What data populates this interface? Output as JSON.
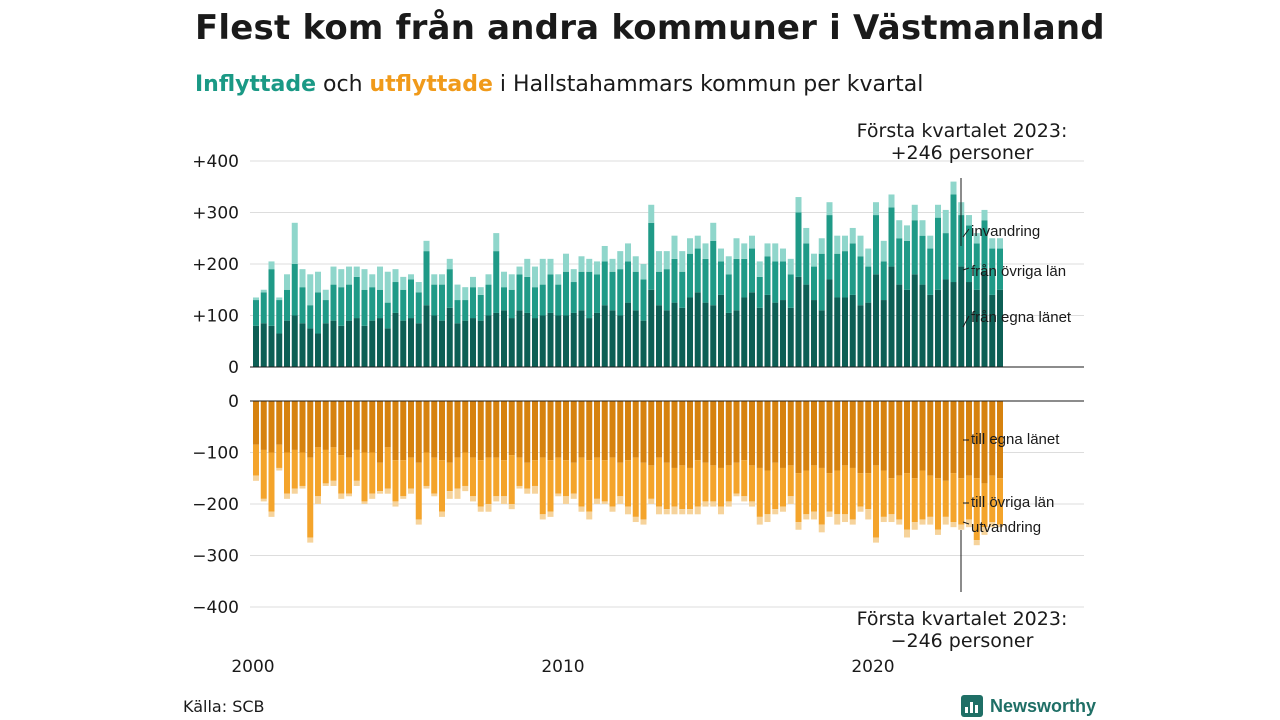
{
  "title": "Flest kom från andra kommuner i Västmanland",
  "subtitle": {
    "in_word": "Inflyttade",
    "middle": " och ",
    "out_word": "utflyttade",
    "rest": " i Hallstahammars kommun per kvartal"
  },
  "source": "Källa: SCB",
  "logo_text": "Newsworthy",
  "colors": {
    "in_own_county": "#0d5f55",
    "in_other_counties": "#1f9a87",
    "in_immigration": "#8fd6cb",
    "out_own_county": "#d6820f",
    "out_other_counties": "#f4a42b",
    "out_emigration": "#f6d39b",
    "grid": "#dddddd"
  },
  "chart_data": {
    "type": "bar",
    "stacked": true,
    "x_unit": "quarter",
    "first_quarter": "2000 K1",
    "last_quarter": "2023 K1",
    "xticks": [
      "2000",
      "2010",
      "2020"
    ],
    "yticks_top": [
      "+400",
      "+300",
      "+200",
      "+100",
      "0"
    ],
    "yticks_bottom": [
      "0",
      "−100",
      "−200",
      "−300",
      "−400"
    ],
    "ylim_top": [
      0,
      400
    ],
    "ylim_bottom": [
      -400,
      0
    ],
    "grid": true,
    "inflow_series": [
      {
        "name": "från egna länet",
        "values": [
          80,
          85,
          80,
          65,
          90,
          100,
          85,
          75,
          65,
          85,
          90,
          80,
          90,
          95,
          80,
          90,
          95,
          75,
          105,
          90,
          95,
          85,
          120,
          100,
          90,
          115,
          85,
          90,
          95,
          90,
          100,
          105,
          110,
          95,
          110,
          105,
          95,
          100,
          105,
          100,
          100,
          105,
          110,
          95,
          105,
          120,
          110,
          100,
          125,
          110,
          90,
          150,
          120,
          110,
          125,
          115,
          135,
          145,
          125,
          120,
          140,
          105,
          110,
          135,
          145,
          115,
          140,
          125,
          130,
          115,
          175,
          160,
          130,
          110,
          170,
          135,
          135,
          140,
          120,
          125,
          180,
          130,
          195,
          160,
          150,
          180,
          160,
          140,
          150,
          170,
          165,
          195,
          165,
          150,
          185,
          140,
          150
        ]
      },
      {
        "name": "från övriga län",
        "values": [
          50,
          60,
          110,
          65,
          60,
          100,
          70,
          45,
          80,
          45,
          70,
          75,
          70,
          80,
          70,
          65,
          55,
          50,
          60,
          60,
          75,
          60,
          105,
          60,
          70,
          75,
          45,
          40,
          60,
          50,
          60,
          120,
          45,
          55,
          70,
          70,
          60,
          60,
          75,
          60,
          85,
          60,
          75,
          90,
          75,
          85,
          75,
          90,
          80,
          75,
          80,
          130,
          65,
          80,
          85,
          70,
          85,
          85,
          85,
          125,
          65,
          75,
          100,
          75,
          85,
          60,
          75,
          80,
          75,
          65,
          125,
          80,
          65,
          110,
          125,
          85,
          90,
          100,
          95,
          70,
          115,
          75,
          115,
          90,
          95,
          105,
          95,
          90,
          140,
          90,
          170,
          100,
          110,
          90,
          100,
          90,
          80
        ]
      },
      {
        "name": "invandring",
        "values": [
          5,
          5,
          15,
          5,
          30,
          80,
          35,
          60,
          40,
          20,
          35,
          35,
          35,
          20,
          40,
          25,
          45,
          60,
          25,
          25,
          10,
          20,
          20,
          20,
          20,
          20,
          30,
          25,
          20,
          15,
          20,
          35,
          30,
          30,
          15,
          35,
          40,
          50,
          30,
          20,
          35,
          25,
          30,
          25,
          25,
          30,
          25,
          35,
          35,
          30,
          30,
          35,
          40,
          35,
          45,
          40,
          30,
          25,
          30,
          35,
          25,
          35,
          40,
          30,
          25,
          30,
          25,
          35,
          25,
          30,
          30,
          30,
          25,
          30,
          25,
          35,
          30,
          30,
          40,
          35,
          25,
          40,
          25,
          35,
          30,
          30,
          30,
          25,
          25,
          45,
          25,
          25,
          20,
          20,
          20,
          20,
          20
        ]
      }
    ],
    "outflow_series": [
      {
        "name": "till egna länet",
        "values": [
          -85,
          -95,
          -100,
          -85,
          -100,
          -95,
          -100,
          -110,
          -90,
          -95,
          -90,
          -105,
          -110,
          -95,
          -100,
          -100,
          -120,
          -90,
          -115,
          -115,
          -110,
          -120,
          -100,
          -110,
          -115,
          -120,
          -110,
          -100,
          -110,
          -115,
          -110,
          -110,
          -115,
          -105,
          -110,
          -120,
          -115,
          -110,
          -115,
          -110,
          -115,
          -120,
          -110,
          -115,
          -110,
          -115,
          -110,
          -120,
          -115,
          -110,
          -120,
          -125,
          -110,
          -120,
          -130,
          -125,
          -130,
          -115,
          -120,
          -125,
          -130,
          -125,
          -120,
          -115,
          -125,
          -130,
          -135,
          -120,
          -130,
          -125,
          -140,
          -135,
          -125,
          -130,
          -140,
          -135,
          -125,
          -130,
          -140,
          -140,
          -125,
          -135,
          -150,
          -145,
          -140,
          -150,
          -135,
          -145,
          -150,
          -155,
          -140,
          -150,
          -145,
          -150,
          -160,
          -145,
          -150
        ]
      },
      {
        "name": "till övriga län",
        "values": [
          -60,
          -95,
          -115,
          -45,
          -80,
          -75,
          -65,
          -155,
          -95,
          -65,
          -65,
          -75,
          -70,
          -60,
          -95,
          -80,
          -55,
          -80,
          -80,
          -70,
          -60,
          -110,
          -65,
          -70,
          -100,
          -55,
          -60,
          -65,
          -75,
          -90,
          -90,
          -75,
          -70,
          -95,
          -55,
          -50,
          -50,
          -110,
          -100,
          -70,
          -70,
          -60,
          -95,
          -100,
          -80,
          -80,
          -95,
          -65,
          -90,
          -115,
          -110,
          -65,
          -95,
          -90,
          -75,
          -85,
          -80,
          -90,
          -75,
          -70,
          -75,
          -70,
          -60,
          -70,
          -70,
          -95,
          -85,
          -90,
          -75,
          -60,
          -95,
          -85,
          -90,
          -110,
          -75,
          -85,
          -95,
          -100,
          -65,
          -70,
          -140,
          -90,
          -70,
          -85,
          -110,
          -85,
          -95,
          -80,
          -100,
          -70,
          -95,
          -90,
          -85,
          -120,
          -85,
          -90,
          -90
        ]
      },
      {
        "name": "utvandring",
        "values": [
          -10,
          -5,
          -10,
          -5,
          -10,
          -10,
          -5,
          -10,
          -15,
          -5,
          -10,
          -10,
          -5,
          -10,
          -5,
          -10,
          -5,
          -10,
          -10,
          -5,
          -10,
          -10,
          -5,
          -5,
          -10,
          -15,
          -20,
          -10,
          -10,
          -10,
          -15,
          -10,
          -15,
          -10,
          -5,
          -10,
          -15,
          -10,
          -10,
          -5,
          -15,
          -10,
          -10,
          -15,
          -10,
          -5,
          -10,
          -15,
          -15,
          -10,
          -10,
          -10,
          -15,
          -10,
          -15,
          -10,
          -10,
          -15,
          -10,
          -10,
          -15,
          -10,
          -5,
          -10,
          -10,
          -15,
          -15,
          -10,
          -10,
          -15,
          -15,
          -10,
          -15,
          -15,
          -10,
          -20,
          -15,
          -10,
          -10,
          -20,
          -10,
          -10,
          -15,
          -10,
          -15,
          -15,
          -10,
          -15,
          -10,
          -15,
          -10,
          -10,
          -15,
          -10,
          -15,
          -10,
          -5
        ]
      }
    ],
    "annotations": {
      "top_label": [
        "Första kvartalet 2023:",
        "+246 personer"
      ],
      "bottom_label": [
        "Första kvartalet 2023:",
        "−246 personer"
      ],
      "in_segments": [
        "invandring",
        "från övriga län",
        "från egna länet"
      ],
      "out_segments": [
        "till egna länet",
        "till övriga län",
        "utvandring"
      ]
    }
  }
}
